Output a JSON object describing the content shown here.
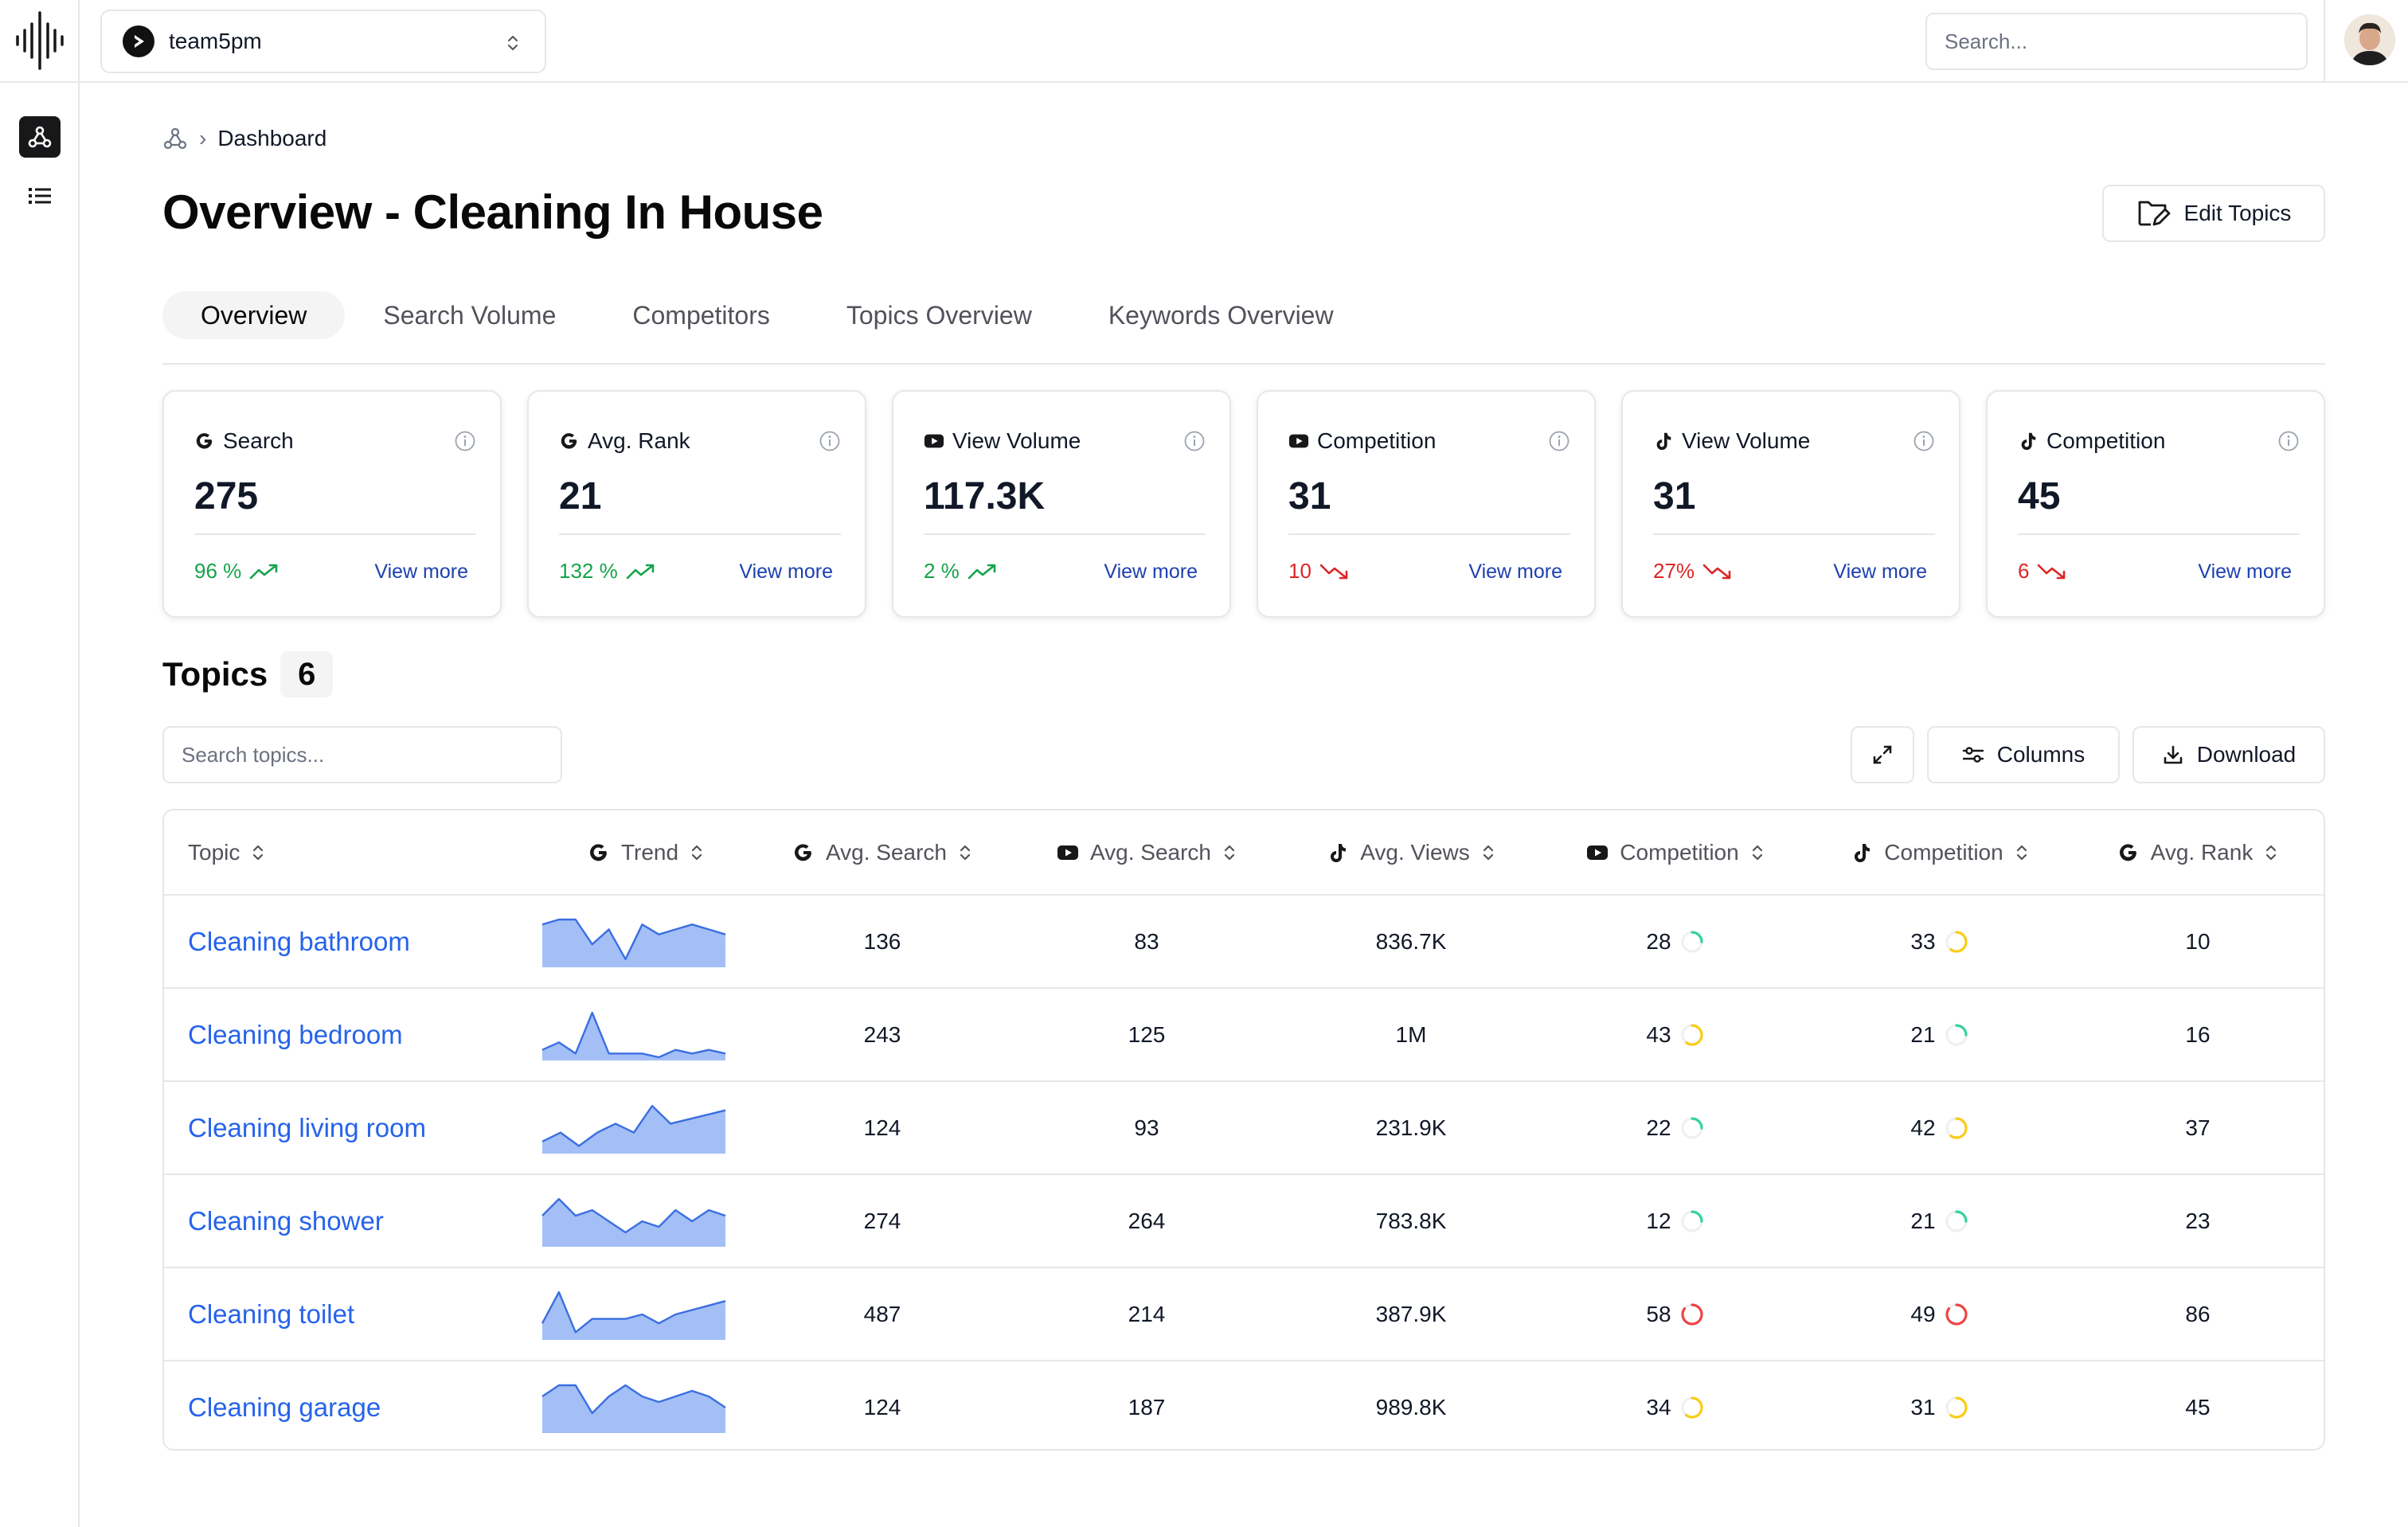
{
  "topbar": {
    "team_name": "team5pm",
    "search_placeholder": "Search..."
  },
  "breadcrumb": {
    "current": "Dashboard"
  },
  "page": {
    "title": "Overview - Cleaning In House",
    "edit_label": "Edit Topics"
  },
  "tabs": [
    {
      "label": "Overview",
      "active": true
    },
    {
      "label": "Search Volume",
      "active": false
    },
    {
      "label": "Competitors",
      "active": false
    },
    {
      "label": "Topics Overview",
      "active": false
    },
    {
      "label": "Keywords Overview",
      "active": false
    }
  ],
  "cards": [
    {
      "source": "google",
      "label": "Search",
      "value": "275",
      "change": "96 %",
      "direction": "up",
      "more": "View more"
    },
    {
      "source": "google",
      "label": "Avg. Rank",
      "value": "21",
      "change": "132 %",
      "direction": "up",
      "more": "View more"
    },
    {
      "source": "youtube",
      "label": "View Volume",
      "value": "117.3K",
      "change": "2 %",
      "direction": "up",
      "more": "View more"
    },
    {
      "source": "youtube",
      "label": "Competition",
      "value": "31",
      "change": "10",
      "direction": "down",
      "more": "View more"
    },
    {
      "source": "tiktok",
      "label": "View Volume",
      "value": "31",
      "change": "27%",
      "direction": "down",
      "more": "View more"
    },
    {
      "source": "tiktok",
      "label": "Competition",
      "value": "45",
      "change": "6",
      "direction": "down",
      "more": "View more"
    }
  ],
  "topics": {
    "title": "Topics",
    "count": "6",
    "search_placeholder": "Search topics...",
    "columns_label": "Columns",
    "download_label": "Download"
  },
  "table": {
    "headers": [
      {
        "label": "Topic",
        "source": ""
      },
      {
        "label": "Trend",
        "source": "google"
      },
      {
        "label": "Avg. Search",
        "source": "google"
      },
      {
        "label": "Avg. Search",
        "source": "youtube"
      },
      {
        "label": "Avg. Views",
        "source": "tiktok"
      },
      {
        "label": "Competition",
        "source": "youtube"
      },
      {
        "label": "Competition",
        "source": "tiktok"
      },
      {
        "label": "Avg. Rank",
        "source": "google"
      }
    ],
    "rows": [
      {
        "topic": "Cleaning bathroom",
        "trend": [
          8,
          9,
          9,
          4,
          7,
          1,
          8,
          6,
          7,
          8,
          7,
          6
        ],
        "g_search": "136",
        "yt_search": "83",
        "tt_views": "836.7K",
        "yt_comp": "28",
        "yt_comp_level": "low",
        "tt_comp": "33",
        "tt_comp_level": "medium",
        "rank": "10"
      },
      {
        "topic": "Cleaning bedroom",
        "trend": [
          2,
          4,
          1,
          12,
          1,
          1,
          1,
          0,
          2,
          1,
          2,
          1
        ],
        "g_search": "243",
        "yt_search": "125",
        "tt_views": "1M",
        "yt_comp": "43",
        "yt_comp_level": "medium",
        "tt_comp": "21",
        "tt_comp_level": "low",
        "rank": "16"
      },
      {
        "topic": "Cleaning living room",
        "trend": [
          2,
          4,
          1,
          4,
          6,
          4,
          10,
          6,
          7,
          8,
          9
        ],
        "g_search": "124",
        "yt_search": "93",
        "tt_views": "231.9K",
        "yt_comp": "22",
        "yt_comp_level": "low",
        "tt_comp": "42",
        "tt_comp_level": "medium",
        "rank": "37"
      },
      {
        "topic": "Cleaning shower",
        "trend": [
          5,
          8,
          5,
          6,
          4,
          2,
          4,
          3,
          6,
          4,
          6,
          5
        ],
        "g_search": "274",
        "yt_search": "264",
        "tt_views": "783.8K",
        "yt_comp": "12",
        "yt_comp_level": "low",
        "tt_comp": "21",
        "tt_comp_level": "low",
        "rank": "23"
      },
      {
        "topic": "Cleaning toilet",
        "trend": [
          3,
          10,
          1,
          4,
          4,
          4,
          5,
          3,
          5,
          6,
          7,
          8
        ],
        "g_search": "487",
        "yt_search": "214",
        "tt_views": "387.9K",
        "yt_comp": "58",
        "yt_comp_level": "high",
        "tt_comp": "49",
        "tt_comp_level": "high",
        "rank": "86"
      },
      {
        "topic": "Cleaning garage",
        "trend": [
          6,
          8,
          8,
          3,
          6,
          8,
          6,
          5,
          6,
          7,
          6,
          4
        ],
        "g_search": "124",
        "yt_search": "187",
        "tt_views": "989.8K",
        "yt_comp": "34",
        "yt_comp_level": "medium",
        "tt_comp": "31",
        "tt_comp_level": "medium",
        "rank": "45"
      }
    ]
  },
  "colors": {
    "accent": "#2563eb",
    "link": "#1e40af",
    "up": "#16a34a",
    "down": "#dc2626",
    "comp_low": "#34d399",
    "comp_medium": "#facc15",
    "comp_high": "#ef4444",
    "trend_fill": "#93b4f5",
    "trend_line": "#3b6fe0"
  },
  "icons": {
    "logo": "waveform-logo-icon",
    "sidebar": [
      "topics-network-icon",
      "list-icon"
    ],
    "edit": "folder-edit-icon",
    "expand": "expand-icon",
    "columns": "sliders-icon",
    "download": "download-icon",
    "info": "info-icon",
    "sort": "sort-icon"
  }
}
